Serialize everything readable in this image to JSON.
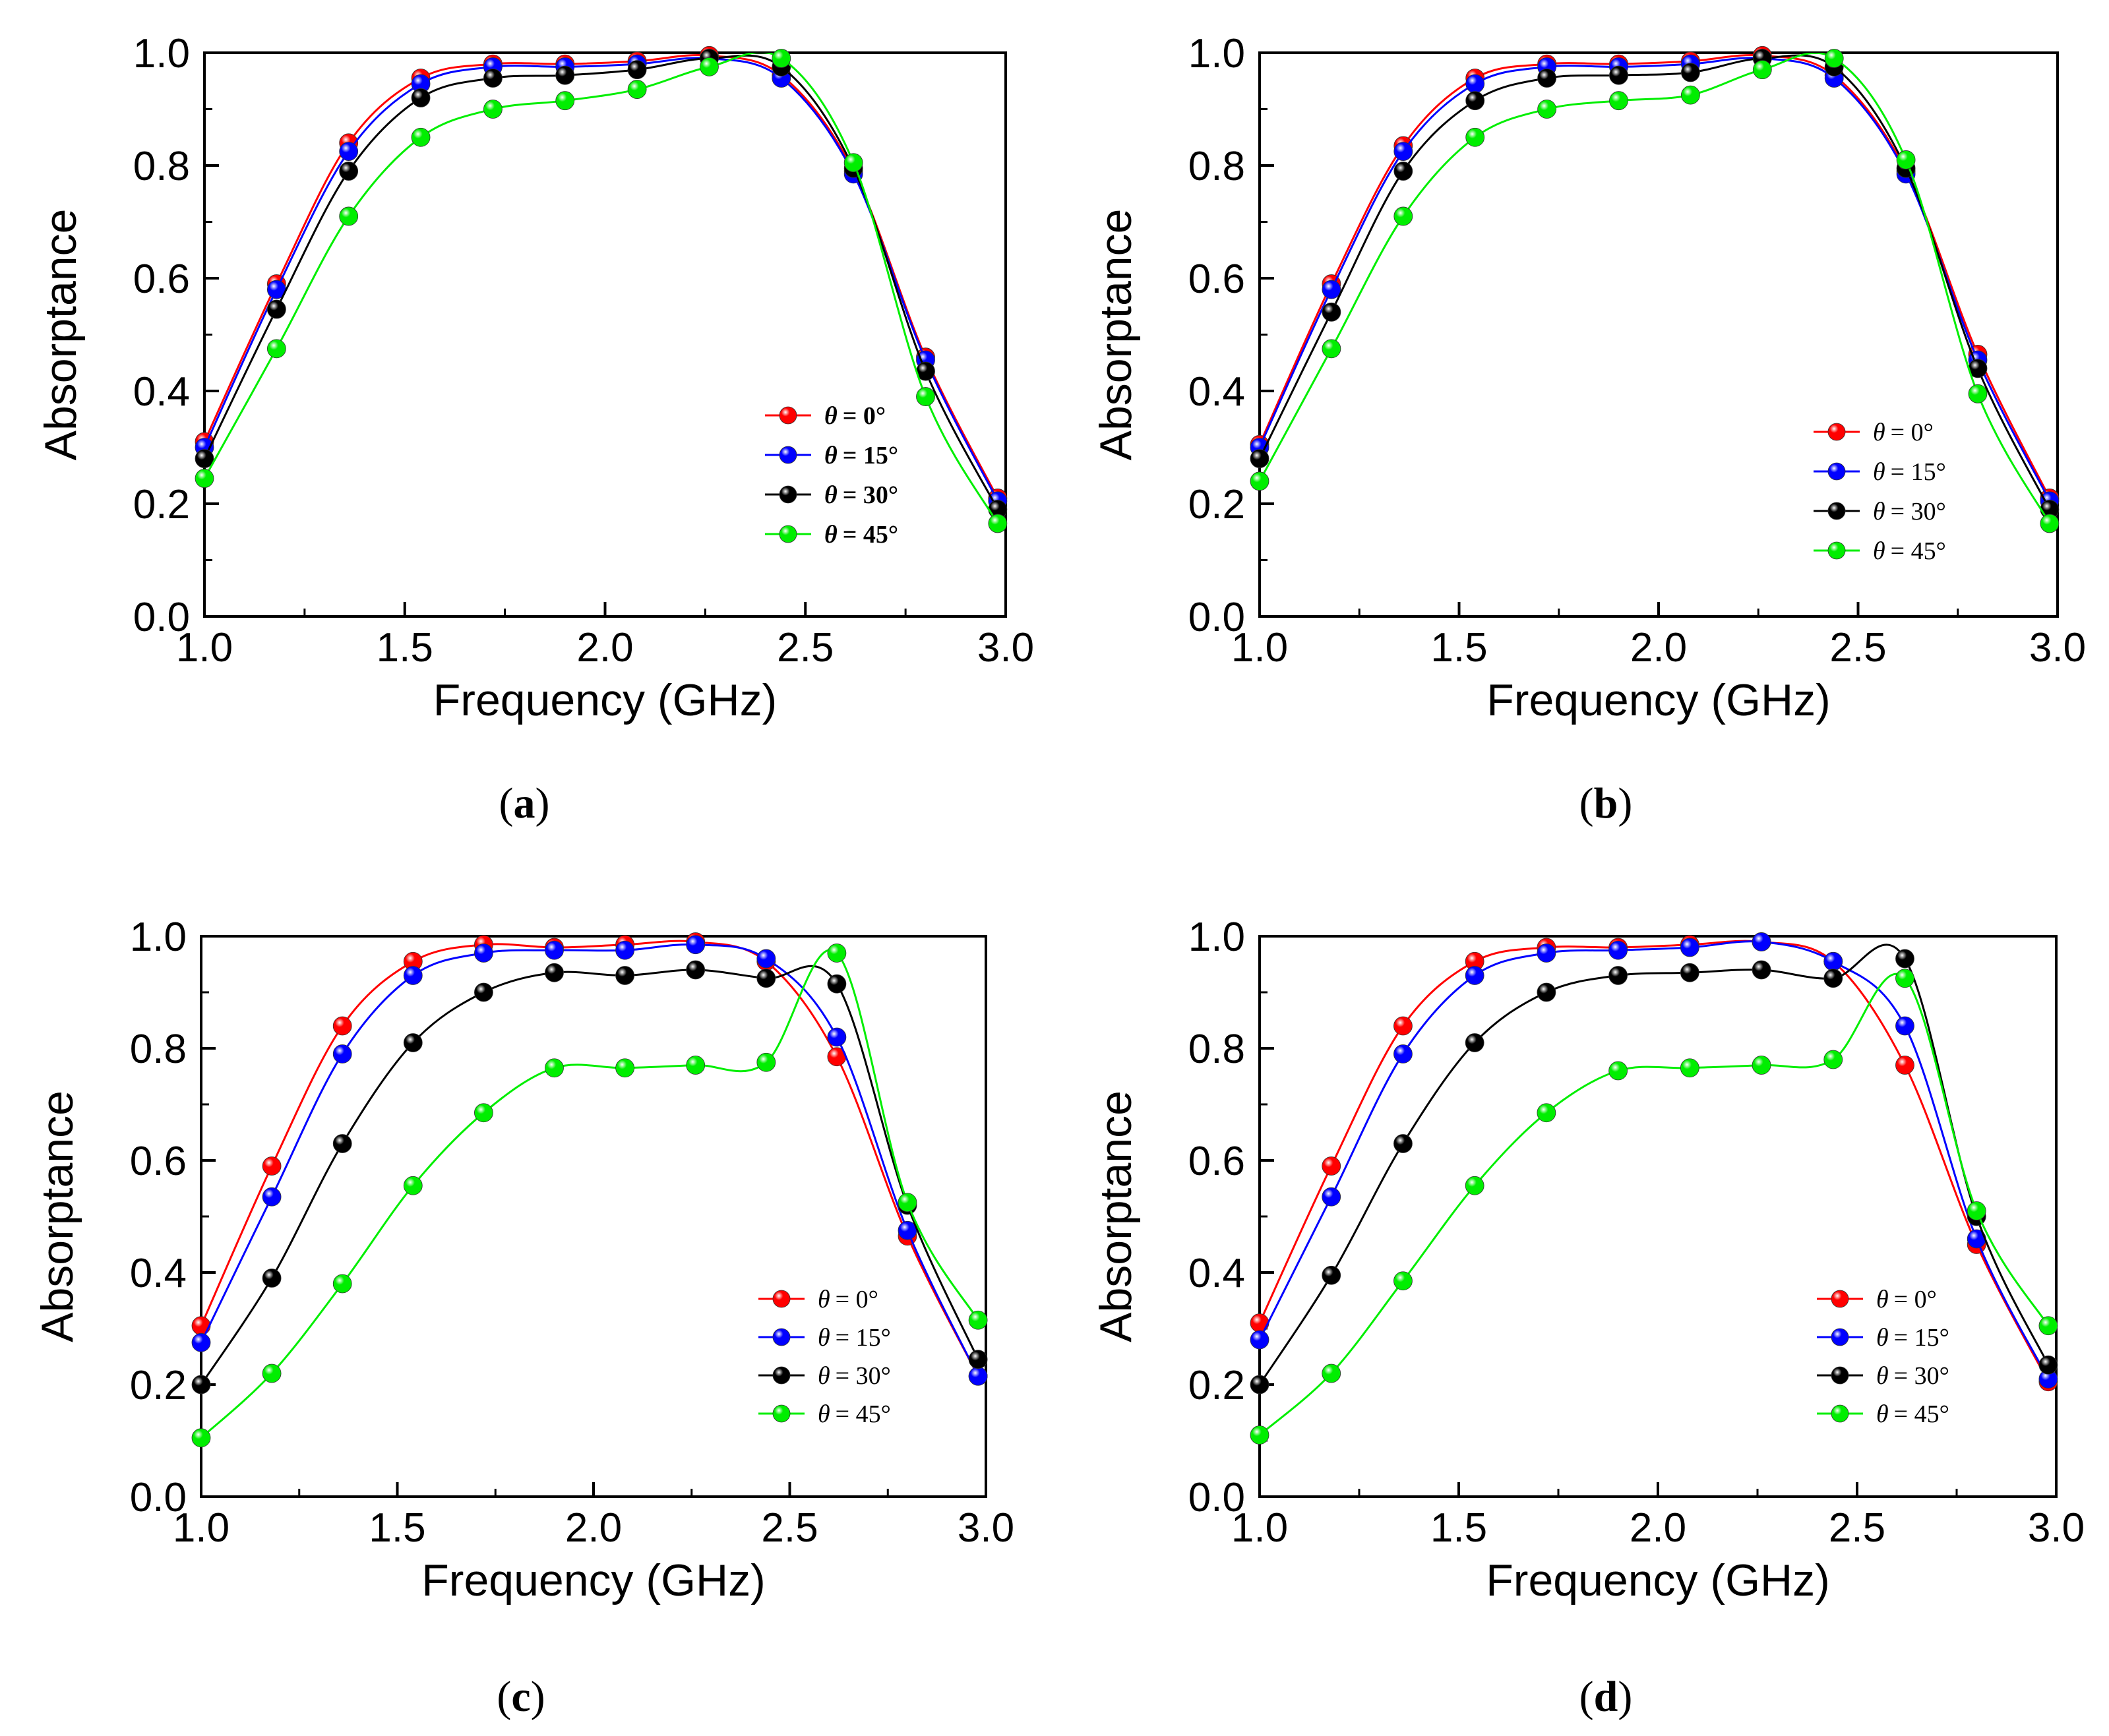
{
  "figure": {
    "captions": [
      "a",
      "b",
      "c",
      "d"
    ]
  },
  "chart_data": [
    {
      "type": "line",
      "panel": "a",
      "xlabel": "Frequency (GHz)",
      "ylabel": "Absorptance",
      "xlim": [
        1.0,
        3.0
      ],
      "ylim": [
        0.0,
        1.0
      ],
      "xticks": [
        "1.0",
        "1.5",
        "2.0",
        "2.5",
        "3.0"
      ],
      "yticks": [
        "0.0",
        "0.2",
        "0.4",
        "0.6",
        "0.8",
        "1.0"
      ],
      "legend_position": "lower-right",
      "legend_bold": true,
      "x": [
        1.0,
        1.18,
        1.36,
        1.54,
        1.72,
        1.9,
        2.08,
        2.26,
        2.44,
        2.62,
        2.8,
        2.98
      ],
      "series": [
        {
          "name": "θ = 0°",
          "label_prefix": "θ",
          "label_value": "= 0°",
          "color": "#ff0000",
          "values": [
            0.31,
            0.59,
            0.84,
            0.955,
            0.98,
            0.98,
            0.985,
            0.995,
            0.96,
            0.79,
            0.46,
            0.21
          ]
        },
        {
          "name": "θ = 15°",
          "label_prefix": "θ",
          "label_value": "= 15°",
          "color": "#0000ff",
          "values": [
            0.3,
            0.58,
            0.825,
            0.945,
            0.975,
            0.975,
            0.98,
            0.99,
            0.955,
            0.785,
            0.455,
            0.205
          ]
        },
        {
          "name": "θ = 30°",
          "label_prefix": "θ",
          "label_value": "= 30°",
          "color": "#000000",
          "values": [
            0.28,
            0.545,
            0.79,
            0.92,
            0.955,
            0.96,
            0.97,
            0.99,
            0.975,
            0.795,
            0.435,
            0.19
          ]
        },
        {
          "name": "θ = 45°",
          "label_prefix": "θ",
          "label_value": "= 45°",
          "color": "#00ee00",
          "values": [
            0.245,
            0.475,
            0.71,
            0.85,
            0.9,
            0.915,
            0.935,
            0.975,
            0.99,
            0.805,
            0.39,
            0.165
          ]
        }
      ]
    },
    {
      "type": "line",
      "panel": "b",
      "xlabel": "Frequency (GHz)",
      "ylabel": "Absorptance",
      "xlim": [
        1.0,
        3.0
      ],
      "ylim": [
        0.0,
        1.0
      ],
      "xticks": [
        "1.0",
        "1.5",
        "2.0",
        "2.5",
        "3.0"
      ],
      "yticks": [
        "0.0",
        "0.2",
        "0.4",
        "0.6",
        "0.8",
        "1.0"
      ],
      "legend_position": "lower-right",
      "legend_bold": false,
      "x": [
        1.0,
        1.18,
        1.36,
        1.54,
        1.72,
        1.9,
        2.08,
        2.26,
        2.44,
        2.62,
        2.8,
        2.98
      ],
      "series": [
        {
          "name": "θ = 0°",
          "label_prefix": "θ",
          "label_value": "= 0°",
          "color": "#ff0000",
          "values": [
            0.305,
            0.59,
            0.835,
            0.955,
            0.98,
            0.98,
            0.985,
            0.995,
            0.96,
            0.79,
            0.465,
            0.21
          ]
        },
        {
          "name": "θ = 15°",
          "label_prefix": "θ",
          "label_value": "= 15°",
          "color": "#0000ff",
          "values": [
            0.3,
            0.58,
            0.825,
            0.945,
            0.975,
            0.975,
            0.98,
            0.99,
            0.955,
            0.785,
            0.455,
            0.205
          ]
        },
        {
          "name": "θ = 30°",
          "label_prefix": "θ",
          "label_value": "= 30°",
          "color": "#000000",
          "values": [
            0.28,
            0.54,
            0.79,
            0.915,
            0.955,
            0.96,
            0.965,
            0.99,
            0.975,
            0.795,
            0.44,
            0.19
          ]
        },
        {
          "name": "θ = 45°",
          "label_prefix": "θ",
          "label_value": "= 45°",
          "color": "#00ee00",
          "values": [
            0.24,
            0.475,
            0.71,
            0.85,
            0.9,
            0.915,
            0.925,
            0.97,
            0.99,
            0.81,
            0.395,
            0.165
          ]
        }
      ]
    },
    {
      "type": "line",
      "panel": "c",
      "xlabel": "Frequency (GHz)",
      "ylabel": "Absorptance",
      "xlim": [
        1.0,
        3.0
      ],
      "ylim": [
        0.0,
        1.0
      ],
      "xticks": [
        "1.0",
        "1.5",
        "2.0",
        "2.5",
        "3.0"
      ],
      "yticks": [
        "0.0",
        "0.2",
        "0.4",
        "0.6",
        "0.8",
        "1.0"
      ],
      "legend_position": "lower-right",
      "legend_bold": false,
      "x": [
        1.0,
        1.18,
        1.36,
        1.54,
        1.72,
        1.9,
        2.08,
        2.26,
        2.44,
        2.62,
        2.8,
        2.98
      ],
      "series": [
        {
          "name": "θ = 0°",
          "label_prefix": "θ",
          "label_value": "= 0°",
          "color": "#ff0000",
          "values": [
            0.305,
            0.59,
            0.84,
            0.955,
            0.985,
            0.98,
            0.985,
            0.99,
            0.955,
            0.785,
            0.465,
            0.215
          ]
        },
        {
          "name": "θ = 15°",
          "label_prefix": "θ",
          "label_value": "= 15°",
          "color": "#0000ff",
          "values": [
            0.275,
            0.535,
            0.79,
            0.93,
            0.97,
            0.975,
            0.975,
            0.985,
            0.96,
            0.82,
            0.475,
            0.215
          ]
        },
        {
          "name": "θ = 30°",
          "label_prefix": "θ",
          "label_value": "= 30°",
          "color": "#000000",
          "values": [
            0.2,
            0.39,
            0.63,
            0.81,
            0.9,
            0.935,
            0.93,
            0.94,
            0.925,
            0.915,
            0.52,
            0.245
          ]
        },
        {
          "name": "θ = 45°",
          "label_prefix": "θ",
          "label_value": "= 45°",
          "color": "#00ee00",
          "values": [
            0.105,
            0.22,
            0.38,
            0.555,
            0.685,
            0.765,
            0.765,
            0.77,
            0.775,
            0.97,
            0.525,
            0.315
          ]
        }
      ]
    },
    {
      "type": "line",
      "panel": "d",
      "xlabel": "Frequency (GHz)",
      "ylabel": "Absorptance",
      "xlim": [
        1.0,
        3.0
      ],
      "ylim": [
        0.0,
        1.0
      ],
      "xticks": [
        "1.0",
        "1.5",
        "2.0",
        "2.5",
        "3.0"
      ],
      "yticks": [
        "0.0",
        "0.2",
        "0.4",
        "0.6",
        "0.8",
        "1.0"
      ],
      "legend_position": "lower-right",
      "legend_bold": false,
      "x": [
        1.0,
        1.18,
        1.36,
        1.54,
        1.72,
        1.9,
        2.08,
        2.26,
        2.44,
        2.62,
        2.8,
        2.98
      ],
      "series": [
        {
          "name": "θ = 0°",
          "label_prefix": "θ",
          "label_value": "= 0°",
          "color": "#ff0000",
          "values": [
            0.31,
            0.59,
            0.84,
            0.955,
            0.98,
            0.98,
            0.985,
            0.99,
            0.955,
            0.77,
            0.45,
            0.205
          ]
        },
        {
          "name": "θ = 15°",
          "label_prefix": "θ",
          "label_value": "= 15°",
          "color": "#0000ff",
          "values": [
            0.28,
            0.535,
            0.79,
            0.93,
            0.97,
            0.975,
            0.98,
            0.99,
            0.955,
            0.84,
            0.46,
            0.21
          ]
        },
        {
          "name": "θ = 30°",
          "label_prefix": "θ",
          "label_value": "= 30°",
          "color": "#000000",
          "values": [
            0.2,
            0.395,
            0.63,
            0.81,
            0.9,
            0.93,
            0.935,
            0.94,
            0.925,
            0.96,
            0.5,
            0.235
          ]
        },
        {
          "name": "θ = 45°",
          "label_prefix": "θ",
          "label_value": "= 45°",
          "color": "#00ee00",
          "values": [
            0.11,
            0.22,
            0.385,
            0.555,
            0.685,
            0.76,
            0.765,
            0.77,
            0.78,
            0.925,
            0.51,
            0.305
          ]
        }
      ]
    }
  ]
}
